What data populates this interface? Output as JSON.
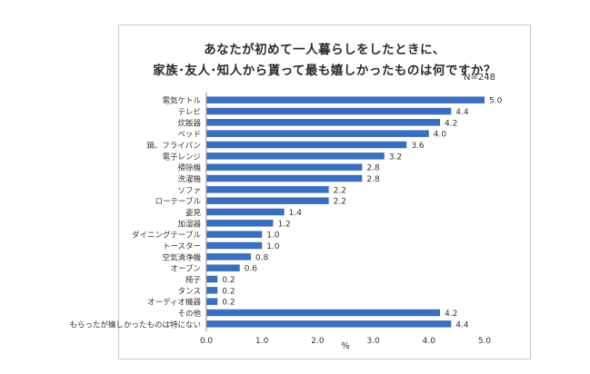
{
  "chart_data": {
    "type": "bar",
    "orientation": "horizontal",
    "title_line1": "あなたが初めて一人暮らしをしたときに、",
    "title_line2": "家族･友人･知人から貰って最も嬉しかったものは何ですか？",
    "sample_size": "N=248",
    "xlabel": "%",
    "ylabel": "",
    "xlim": [
      0,
      5
    ],
    "x_ticks": [
      "0.0",
      "1.0",
      "2.0",
      "3.0",
      "4.0",
      "5.0"
    ],
    "grid": false,
    "bar_color": "#3a6fbf",
    "categories": [
      "電気ケトル",
      "テレビ",
      "炊飯器",
      "ベッド",
      "鍋、フライパン",
      "電子レンジ",
      "掃除機",
      "洗濯機",
      "ソファ",
      "ローテーブル",
      "姿見",
      "加湿器",
      "ダイニングテーブル",
      "トースター",
      "空気清浄機",
      "オーブン",
      "椅子",
      "タンス",
      "オーディオ機器",
      "その他",
      "もらったが嬉しかったものは特にない"
    ],
    "values": [
      5.0,
      4.4,
      4.2,
      4.0,
      3.6,
      3.2,
      2.8,
      2.8,
      2.2,
      2.2,
      1.4,
      1.2,
      1.0,
      1.0,
      0.8,
      0.6,
      0.2,
      0.2,
      0.2,
      4.2,
      4.4
    ],
    "value_labels": [
      "5.0",
      "4.4",
      "4.2",
      "4.0",
      "3.6",
      "3.2",
      "2.8",
      "2.8",
      "2.2",
      "2.2",
      "1.4",
      "1.2",
      "1.0",
      "1.0",
      "0.8",
      "0.6",
      "0.2",
      "0.2",
      "0.2",
      "4.2",
      "4.4"
    ]
  }
}
